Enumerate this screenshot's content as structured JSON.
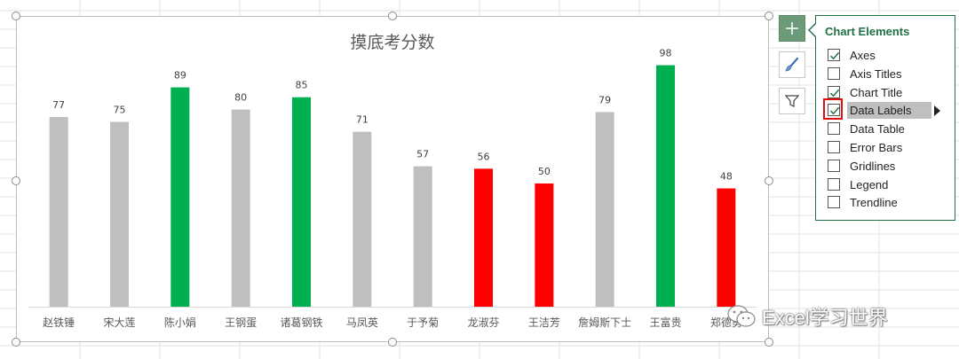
{
  "chart_data": {
    "type": "bar",
    "title": "摸底考分数",
    "categories": [
      "赵铁锤",
      "宋大莲",
      "陈小娟",
      "王钢蛋",
      "诸葛钢铁",
      "马凤英",
      "于予菊",
      "龙淑芬",
      "王洁芳",
      "詹姆斯下士",
      "王富贵",
      "郑德勇"
    ],
    "values": [
      77,
      75,
      89,
      80,
      85,
      71,
      57,
      56,
      50,
      79,
      98,
      48
    ],
    "bar_colors": [
      "#bfbfbf",
      "#bfbfbf",
      "#00b050",
      "#bfbfbf",
      "#00b050",
      "#bfbfbf",
      "#bfbfbf",
      "#ff0000",
      "#ff0000",
      "#bfbfbf",
      "#00b050",
      "#ff0000"
    ],
    "ylim": [
      0,
      100
    ],
    "grid": false,
    "data_labels": true,
    "xlabel": "",
    "ylabel": ""
  },
  "chart_panel": {
    "title": "Chart Elements",
    "options": [
      {
        "label": "Axes",
        "checked": true
      },
      {
        "label": "Axis Titles",
        "checked": false
      },
      {
        "label": "Chart Title",
        "checked": true
      },
      {
        "label": "Data Labels",
        "checked": true,
        "highlighted": true,
        "has_submenu": true
      },
      {
        "label": "Data Table",
        "checked": false
      },
      {
        "label": "Error Bars",
        "checked": false
      },
      {
        "label": "Gridlines",
        "checked": false
      },
      {
        "label": "Legend",
        "checked": false
      },
      {
        "label": "Trendline",
        "checked": false
      }
    ]
  },
  "side_buttons": [
    {
      "name": "chart-elements-button",
      "icon": "plus-icon"
    },
    {
      "name": "chart-styles-button",
      "icon": "brush-icon"
    },
    {
      "name": "chart-filters-button",
      "icon": "filter-icon"
    }
  ],
  "watermark": {
    "text": "Excel学习世界",
    "icon": "wechat-icon"
  },
  "colors": {
    "accent": "#1e7145",
    "focus": "#e01010",
    "gridline": "#e3e3e3"
  }
}
